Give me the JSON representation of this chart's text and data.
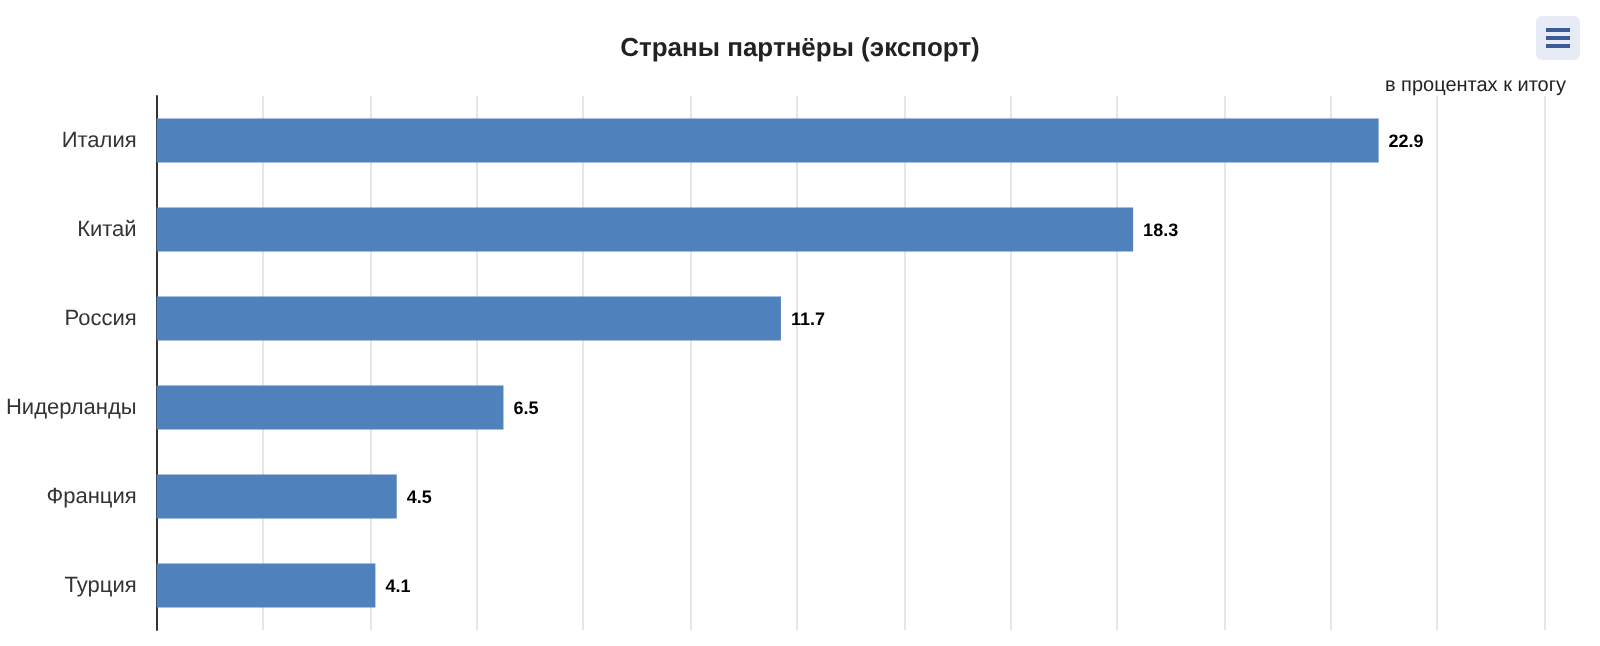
{
  "chart_data": {
    "type": "bar",
    "orientation": "horizontal",
    "title": "Страны партнёры (экспорт)",
    "subtitle": "в процентах к итогу",
    "categories": [
      "Италия",
      "Китай",
      "Россия",
      "Нидерланды",
      "Франция",
      "Турция"
    ],
    "values": [
      22.9,
      18.3,
      11.7,
      6.5,
      4.5,
      4.1
    ],
    "color": "#4f81bd",
    "data_labels": true,
    "xlim": [
      0,
      26
    ],
    "xticks": [
      {
        "value": 0,
        "label": null
      },
      {
        "value": 2,
        "label": null
      },
      {
        "value": 4,
        "label": null
      },
      {
        "value": 6,
        "label": null
      },
      {
        "value": 8,
        "label": null
      },
      {
        "value": 10,
        "label": null
      },
      {
        "value": 12,
        "label": null
      },
      {
        "value": 14,
        "label": null
      },
      {
        "value": 16,
        "label": null
      },
      {
        "value": 18,
        "label": null
      },
      {
        "value": 20,
        "label": null
      },
      {
        "value": 22,
        "label": null
      },
      {
        "value": 24,
        "label": null
      },
      {
        "value": 26,
        "label": null
      }
    ],
    "grid": "x",
    "tick_labels": "y"
  }
}
